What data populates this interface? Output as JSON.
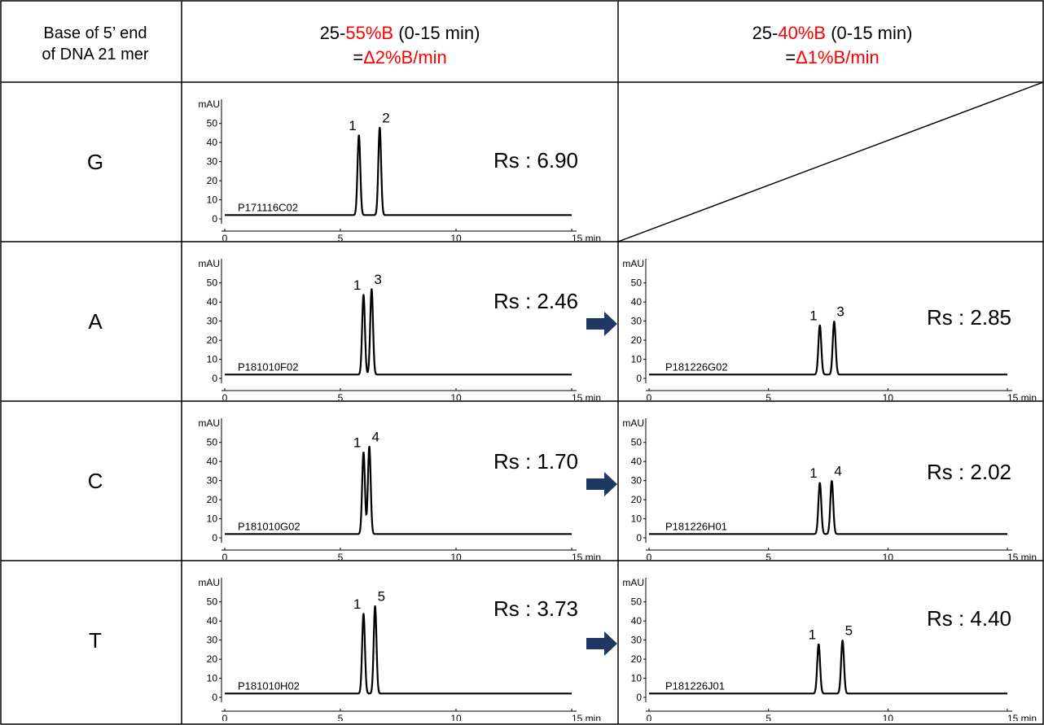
{
  "header": {
    "corner_line1": "Base of 5’ end",
    "corner_line2": "of DNA 21 mer",
    "col1": {
      "prefix": "25-",
      "red_part": "55%B",
      "suffix": " (0-15 min)",
      "line2_prefix": "=",
      "line2_red": "Δ2%B/min"
    },
    "col2": {
      "prefix": "25-",
      "red_part": "40%B",
      "suffix": " (0-15 min)",
      "line2_prefix": "=",
      "line2_red": "Δ1%B/min"
    }
  },
  "axis": {
    "y_unit": "mAU",
    "y_ticks": [
      "0",
      "10",
      "20",
      "30",
      "40",
      "50"
    ],
    "x_ticks": [
      "0",
      "5",
      "10",
      "15 min"
    ]
  },
  "rows": [
    {
      "base": "G",
      "left": {
        "sample": "P171116C02",
        "rs": "Rs : 6.90",
        "peak_labels": [
          "1",
          "2"
        ]
      },
      "right": null
    },
    {
      "base": "A",
      "left": {
        "sample": "P181010F02",
        "rs": "Rs : 2.46",
        "peak_labels": [
          "1",
          "3"
        ]
      },
      "right": {
        "sample": "P181226G02",
        "rs": "Rs : 2.85",
        "peak_labels": [
          "1",
          "3"
        ]
      }
    },
    {
      "base": "C",
      "left": {
        "sample": "P181010G02",
        "rs": "Rs : 1.70",
        "peak_labels": [
          "1",
          "4"
        ]
      },
      "right": {
        "sample": "P181226H01",
        "rs": "Rs : 2.02",
        "peak_labels": [
          "1",
          "4"
        ]
      }
    },
    {
      "base": "T",
      "left": {
        "sample": "P181010H02",
        "rs": "Rs : 3.73",
        "peak_labels": [
          "1",
          "5"
        ]
      },
      "right": {
        "sample": "P181226J01",
        "rs": "Rs : 4.40",
        "peak_labels": [
          "1",
          "5"
        ]
      }
    }
  ],
  "chart_data": [
    {
      "type": "line",
      "id": "G-left",
      "xlim": [
        0,
        15
      ],
      "ylim": [
        0,
        55
      ],
      "baseline": 2,
      "series": [
        {
          "peaks": [
            {
              "x": 5.8,
              "y": 44
            },
            {
              "x": 6.7,
              "y": 48
            }
          ]
        }
      ]
    },
    {
      "type": "line",
      "id": "A-left",
      "xlim": [
        0,
        15
      ],
      "ylim": [
        0,
        55
      ],
      "baseline": 2,
      "series": [
        {
          "peaks": [
            {
              "x": 6.0,
              "y": 44
            },
            {
              "x": 6.35,
              "y": 47
            }
          ]
        }
      ]
    },
    {
      "type": "line",
      "id": "A-right",
      "xlim": [
        0,
        15
      ],
      "ylim": [
        0,
        55
      ],
      "baseline": 2,
      "series": [
        {
          "peaks": [
            {
              "x": 7.15,
              "y": 28
            },
            {
              "x": 7.75,
              "y": 30
            }
          ]
        }
      ]
    },
    {
      "type": "line",
      "id": "C-left",
      "xlim": [
        0,
        15
      ],
      "ylim": [
        0,
        55
      ],
      "baseline": 2,
      "series": [
        {
          "peaks": [
            {
              "x": 6.0,
              "y": 45
            },
            {
              "x": 6.25,
              "y": 48
            }
          ]
        }
      ]
    },
    {
      "type": "line",
      "id": "C-right",
      "xlim": [
        0,
        15
      ],
      "ylim": [
        0,
        55
      ],
      "baseline": 2,
      "series": [
        {
          "peaks": [
            {
              "x": 7.15,
              "y": 29
            },
            {
              "x": 7.65,
              "y": 30
            }
          ]
        }
      ]
    },
    {
      "type": "line",
      "id": "T-left",
      "xlim": [
        0,
        15
      ],
      "ylim": [
        0,
        55
      ],
      "baseline": 2,
      "series": [
        {
          "peaks": [
            {
              "x": 6.0,
              "y": 44
            },
            {
              "x": 6.5,
              "y": 48
            }
          ]
        }
      ]
    },
    {
      "type": "line",
      "id": "T-right",
      "xlim": [
        0,
        15
      ],
      "ylim": [
        0,
        55
      ],
      "baseline": 2,
      "series": [
        {
          "peaks": [
            {
              "x": 7.1,
              "y": 28
            },
            {
              "x": 8.1,
              "y": 30
            }
          ]
        }
      ]
    }
  ],
  "colors": {
    "red": "#ff0000",
    "arrow": "#1f3864",
    "grid": "#000000"
  }
}
